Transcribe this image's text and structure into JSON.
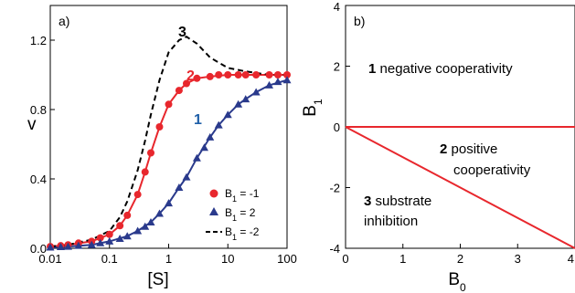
{
  "chart_data": [
    {
      "panel": "a)",
      "type": "line",
      "xscale": "log",
      "xlim": [
        0.01,
        100
      ],
      "ylim": [
        0,
        1.4
      ],
      "xticks": [
        "0.01",
        "0.1",
        "1",
        "10",
        "100"
      ],
      "yticks": [
        "0.0",
        "0.4",
        "0.8",
        "1.2"
      ],
      "xlabel": "[S]",
      "ylabel": "v",
      "colors": {
        "red": "#e8272d",
        "blue": "#2a3a8c",
        "black": "#000000"
      },
      "series": [
        {
          "label": "B1 = -1",
          "curve_number": "2",
          "color": "#e8272d",
          "marker": "circle",
          "line_x": [
            0.01,
            0.02,
            0.05,
            0.1,
            0.15,
            0.2,
            0.3,
            0.4,
            0.5,
            0.7,
            1,
            1.5,
            2,
            3,
            5,
            10,
            20,
            50,
            100
          ],
          "line_y": [
            0.01,
            0.02,
            0.04,
            0.08,
            0.13,
            0.19,
            0.31,
            0.44,
            0.55,
            0.7,
            0.83,
            0.91,
            0.95,
            0.98,
            0.99,
            1.0,
            1.0,
            1.0,
            1.0
          ],
          "points_x": [
            0.01,
            0.015,
            0.02,
            0.03,
            0.05,
            0.07,
            0.1,
            0.15,
            0.2,
            0.3,
            0.4,
            0.5,
            0.7,
            1,
            1.5,
            2,
            3,
            5,
            7,
            10,
            15,
            20,
            30,
            50,
            70,
            100
          ],
          "points_y": [
            0.01,
            0.015,
            0.02,
            0.03,
            0.04,
            0.06,
            0.08,
            0.13,
            0.19,
            0.31,
            0.44,
            0.55,
            0.7,
            0.83,
            0.91,
            0.95,
            0.98,
            0.99,
            1.0,
            1.0,
            1.0,
            1.0,
            1.0,
            1.0,
            1.0,
            1.0
          ]
        },
        {
          "label": "B1 = 2",
          "curve_number": "1",
          "color": "#2a3a8c",
          "marker": "triangle",
          "line_x": [
            0.01,
            0.02,
            0.05,
            0.1,
            0.2,
            0.3,
            0.5,
            0.7,
            1,
            1.5,
            2,
            3,
            5,
            7,
            10,
            15,
            20,
            30,
            50,
            100
          ],
          "line_y": [
            0.005,
            0.01,
            0.02,
            0.04,
            0.07,
            0.1,
            0.15,
            0.2,
            0.26,
            0.35,
            0.41,
            0.52,
            0.64,
            0.71,
            0.77,
            0.83,
            0.86,
            0.9,
            0.94,
            0.97
          ],
          "points_x": [
            0.01,
            0.015,
            0.02,
            0.03,
            0.05,
            0.07,
            0.1,
            0.15,
            0.2,
            0.3,
            0.4,
            0.5,
            0.7,
            1,
            1.5,
            2,
            3,
            4,
            5,
            7,
            10,
            15,
            20,
            30,
            50,
            70,
            100
          ],
          "points_y": [
            0.005,
            0.008,
            0.01,
            0.015,
            0.02,
            0.03,
            0.04,
            0.055,
            0.07,
            0.1,
            0.125,
            0.15,
            0.2,
            0.26,
            0.35,
            0.41,
            0.52,
            0.58,
            0.64,
            0.71,
            0.77,
            0.83,
            0.86,
            0.9,
            0.94,
            0.96,
            0.97
          ]
        },
        {
          "label": "B1 = -2",
          "curve_number": "3",
          "color": "#000000",
          "style": "dashed",
          "line_x": [
            0.01,
            0.02,
            0.05,
            0.1,
            0.15,
            0.2,
            0.3,
            0.4,
            0.5,
            0.7,
            1,
            1.5,
            2,
            3,
            5,
            10,
            20,
            50,
            100
          ],
          "line_y": [
            0.01,
            0.02,
            0.05,
            0.1,
            0.18,
            0.27,
            0.45,
            0.62,
            0.77,
            0.97,
            1.13,
            1.2,
            1.22,
            1.18,
            1.1,
            1.04,
            1.02,
            1.0,
            1.0
          ]
        }
      ],
      "legend": [
        {
          "pre": "B",
          "sub": "1",
          "post": " = -1"
        },
        {
          "pre": "B",
          "sub": "1",
          "post": " =  2"
        },
        {
          "pre": "B",
          "sub": "1",
          "post": " = -2"
        }
      ]
    },
    {
      "panel": "b)",
      "type": "line",
      "xlim": [
        0,
        4
      ],
      "ylim": [
        -4,
        4
      ],
      "xticks": [
        "0",
        "1",
        "2",
        "3",
        "4"
      ],
      "yticks": [
        "-4",
        "-2",
        "0",
        "2",
        "4"
      ],
      "xlabel": {
        "pre": "B",
        "sub": "0"
      },
      "ylabel": {
        "pre": "B",
        "sub": "1"
      },
      "series": [
        {
          "name": "boundary_horizontal",
          "color": "#e8272d",
          "x": [
            0,
            4
          ],
          "y": [
            0,
            0
          ]
        },
        {
          "name": "boundary_diagonal",
          "color": "#e8272d",
          "x": [
            0,
            4
          ],
          "y": [
            0,
            -4
          ]
        }
      ],
      "regions": [
        {
          "number": "1",
          "lines": [
            "negative cooperativity"
          ]
        },
        {
          "number": "2",
          "lines": [
            "positive",
            "cooperativity"
          ]
        },
        {
          "number": "3",
          "lines": [
            "substrate",
            "inhibition"
          ]
        }
      ]
    }
  ]
}
